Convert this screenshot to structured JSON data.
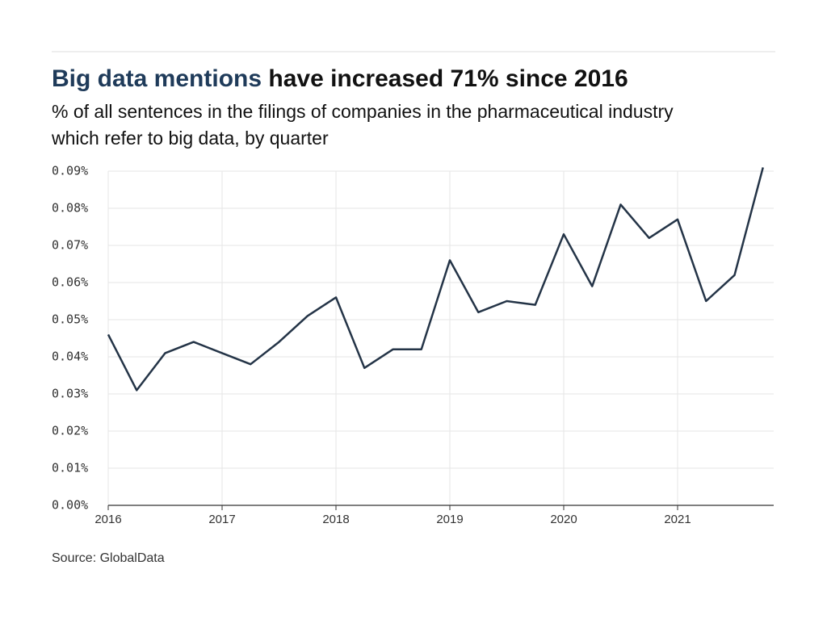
{
  "chart_data": {
    "type": "line",
    "title": [
      "Big data mentions",
      "have increased 71% since 2016"
    ],
    "subtitle": [
      "% of all sentences in the filings of companies in the pharmaceutical industry",
      "which refer to big data, by quarter"
    ],
    "source": "Source: GlobalData",
    "categories": [
      "2016",
      null,
      null,
      null,
      "2017",
      null,
      null,
      null,
      "2018",
      null,
      null,
      null,
      "2019",
      null,
      null,
      null,
      "2020",
      null,
      null,
      null,
      "2021",
      null,
      null,
      null
    ],
    "series": [
      {
        "name": "Big data mentions",
        "color": "#243447",
        "values": [
          0.046,
          0.031,
          0.041,
          0.044,
          0.041,
          0.038,
          0.044,
          0.051,
          0.056,
          0.037,
          0.042,
          0.042,
          0.066,
          0.052,
          0.055,
          0.054,
          0.073,
          0.059,
          0.081,
          0.072,
          0.077,
          0.055,
          0.062,
          0.091
        ]
      }
    ],
    "ylim": [
      0,
      0.09
    ],
    "yticks": [
      {
        "value": 0,
        "label": "0.00%"
      },
      {
        "value": 0.01,
        "label": "0.01%"
      },
      {
        "value": 0.02,
        "label": "0.02%"
      },
      {
        "value": 0.03,
        "label": "0.03%"
      },
      {
        "value": 0.04,
        "label": "0.04%"
      },
      {
        "value": 0.05,
        "label": "0.05%"
      },
      {
        "value": 0.06,
        "label": "0.06%"
      },
      {
        "value": 0.07,
        "label": "0.07%"
      },
      {
        "value": 0.08,
        "label": "0.08%"
      },
      {
        "value": 0.09,
        "label": "0.09%"
      }
    ],
    "grid": true
  }
}
